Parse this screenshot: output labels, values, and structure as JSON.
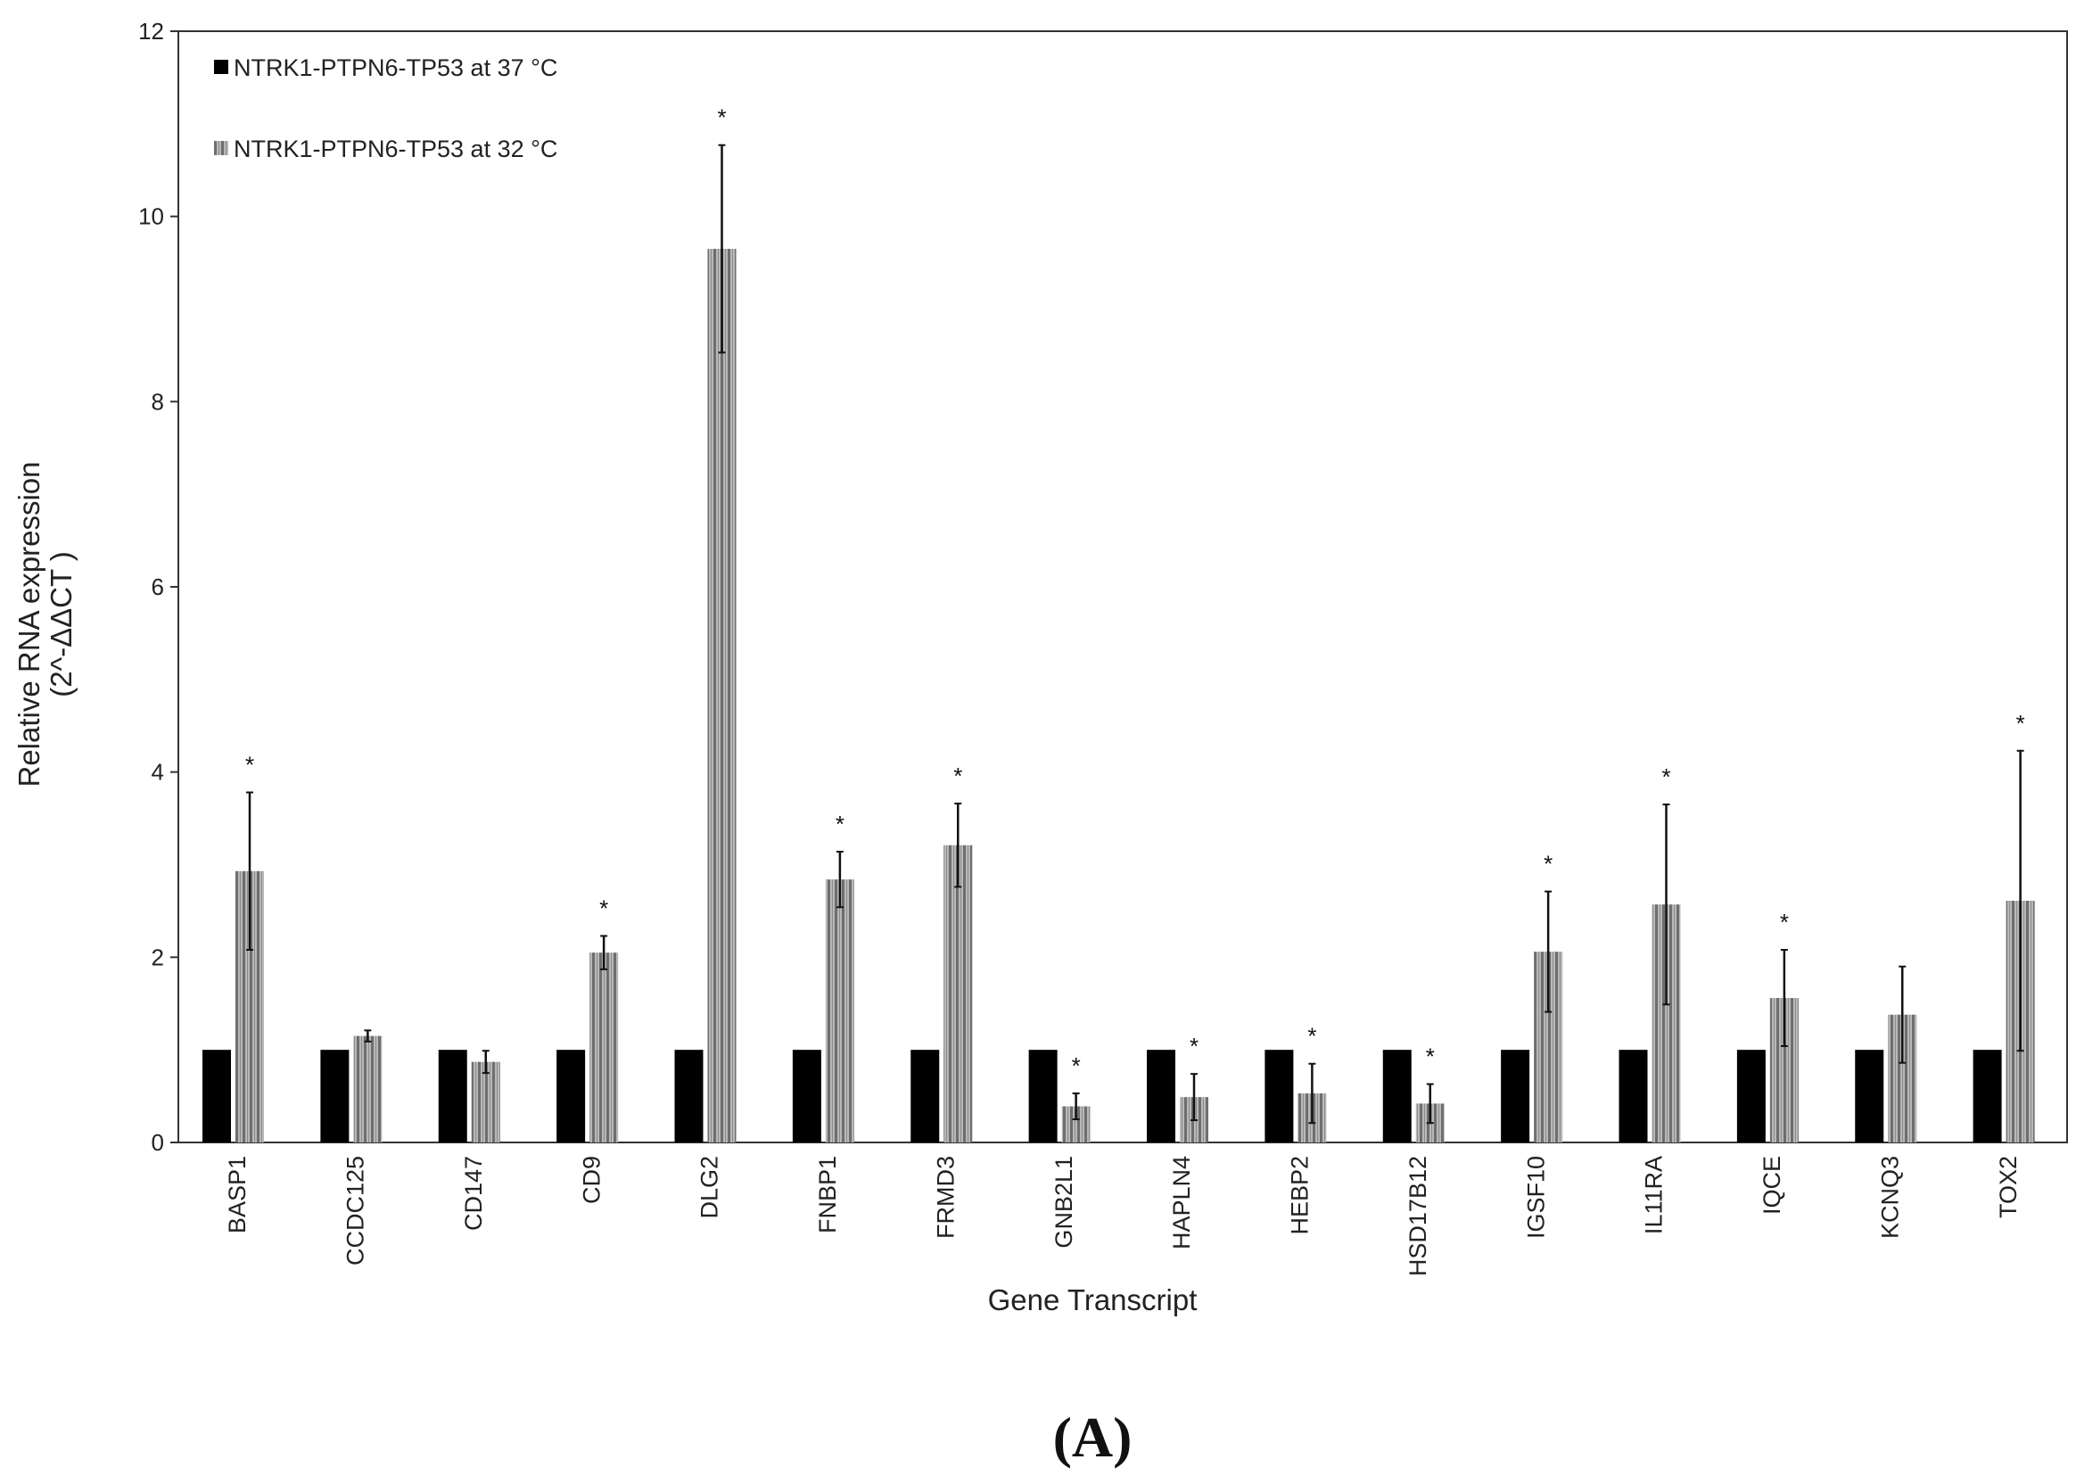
{
  "chart_data": {
    "type": "bar",
    "xlabel": "Gene Transcript",
    "ylabel": "Relative RNA expression",
    "ylabel_line2": "(2^-ΔΔCT )",
    "ylim": [
      0,
      12
    ],
    "yticks": [
      "0",
      "2",
      "4",
      "6",
      "8",
      "10",
      "12"
    ],
    "grid": false,
    "legend_position": "top-left",
    "categories": [
      "BASP1",
      "CCDC125",
      "CD147",
      "CD9",
      "DLG2",
      "FNBP1",
      "FRMD3",
      "GNB2L1",
      "HAPLN4",
      "HEBP2",
      "HSD17B12",
      "IGSF10",
      "IL11RA",
      "IQCE",
      "KCNQ3",
      "TOX2"
    ],
    "series": [
      {
        "name": "NTRK1-PTPN6-TP53 at 37 °C",
        "color": "#000000",
        "pattern": "solid",
        "values": [
          1,
          1,
          1,
          1,
          1,
          1,
          1,
          1,
          1,
          1,
          1,
          1,
          1,
          1,
          1,
          1
        ]
      },
      {
        "name": "NTRK1-PTPN6-TP53 at 32 °C",
        "color": "#7a7a7a",
        "pattern": "vertical-stripes",
        "values": [
          2.93,
          1.15,
          0.87,
          2.05,
          9.65,
          2.84,
          3.21,
          0.39,
          0.49,
          0.53,
          0.42,
          2.06,
          2.57,
          1.56,
          1.38,
          2.61
        ],
        "error": [
          0.85,
          0.06,
          0.12,
          0.18,
          1.12,
          0.3,
          0.45,
          0.14,
          0.25,
          0.32,
          0.21,
          0.65,
          1.08,
          0.52,
          0.52,
          1.62
        ],
        "significant": [
          "*",
          "",
          "",
          "*",
          "*",
          "*",
          "*",
          "*",
          "*",
          "*",
          "*",
          "*",
          "*",
          "*",
          "",
          "*"
        ]
      }
    ],
    "annotations": [
      "(A)"
    ]
  }
}
